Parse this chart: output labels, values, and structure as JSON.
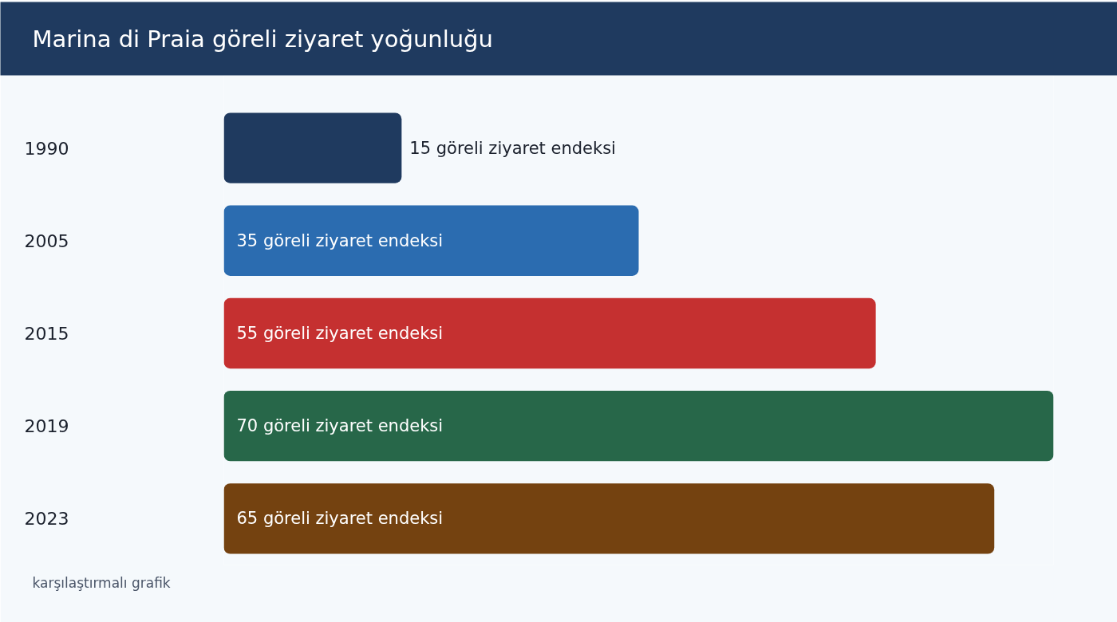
{
  "chart_data": {
    "type": "bar",
    "orientation": "horizontal",
    "title": "Marina di Praia göreli ziyaret yoğunluğu",
    "categories": [
      "1990",
      "2005",
      "2015",
      "2019",
      "2023"
    ],
    "values": [
      15,
      35,
      55,
      70,
      65
    ],
    "colors": [
      "#1f3a5f",
      "#2b6cb0",
      "#c53030",
      "#276749",
      "#744210"
    ],
    "value_labels": [
      "15 göreli ziyaret endeksi",
      "35 göreli ziyaret endeksi",
      "55 göreli ziyaret endeksi",
      "70 göreli ziyaret endeksi",
      "65 göreli ziyaret endeksi"
    ],
    "annotations": [
      "karşılaştırmalı grafik"
    ]
  }
}
